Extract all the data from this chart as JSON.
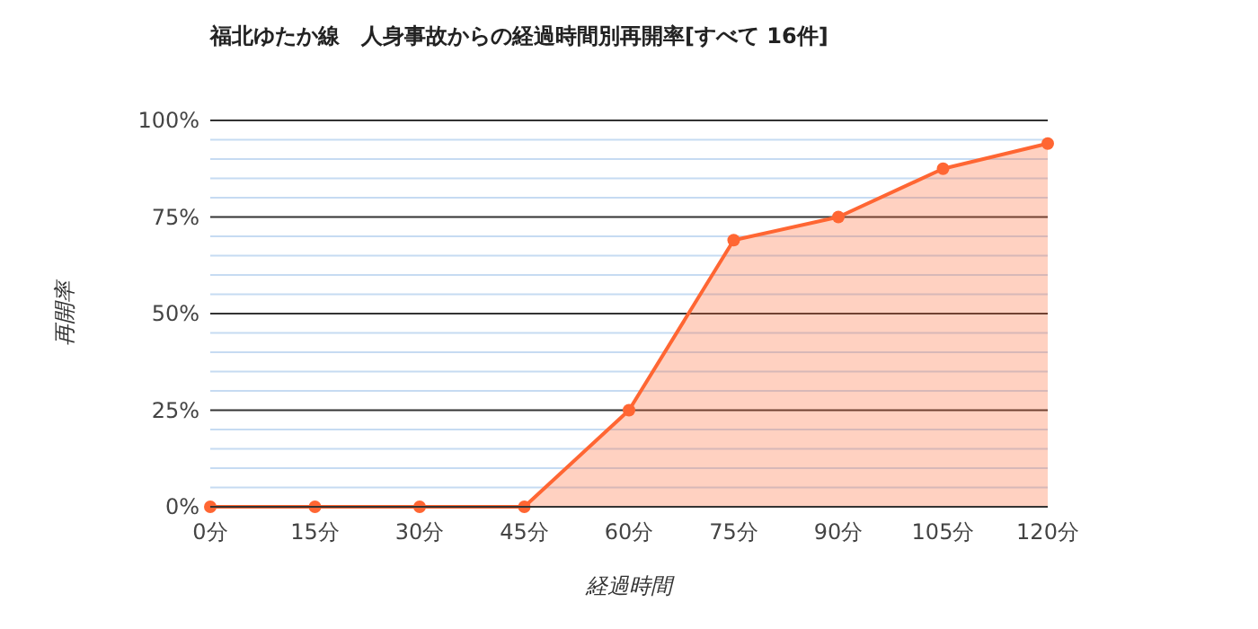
{
  "chart_data": {
    "type": "area",
    "title": "福北ゆたか線　人身事故からの経過時間別再開率[すべて 16件]",
    "xlabel": "経過時間",
    "ylabel": "再開率",
    "x": [
      0,
      15,
      30,
      45,
      60,
      75,
      90,
      105,
      120
    ],
    "series": [
      {
        "color": "#ff6633",
        "values": [
          0,
          0,
          0,
          0,
          25,
          69,
          75,
          87.5,
          94
        ]
      }
    ],
    "xlim": [
      0,
      120
    ],
    "xticks": [
      {
        "value": 0,
        "label": "0分"
      },
      {
        "value": 15,
        "label": "15分"
      },
      {
        "value": 30,
        "label": "30分"
      },
      {
        "value": 45,
        "label": "45分"
      },
      {
        "value": 60,
        "label": "60分"
      },
      {
        "value": 75,
        "label": "75分"
      },
      {
        "value": 90,
        "label": "90分"
      },
      {
        "value": 105,
        "label": "105分"
      },
      {
        "value": 120,
        "label": "120分"
      }
    ],
    "ylim": [
      0,
      100
    ],
    "yticks": [
      {
        "value": 0,
        "label": "0%"
      },
      {
        "value": 5,
        "label": null
      },
      {
        "value": 10,
        "label": null
      },
      {
        "value": 15,
        "label": null
      },
      {
        "value": 20,
        "label": null
      },
      {
        "value": 25,
        "label": "25%"
      },
      {
        "value": 30,
        "label": null
      },
      {
        "value": 35,
        "label": null
      },
      {
        "value": 40,
        "label": null
      },
      {
        "value": 45,
        "label": null
      },
      {
        "value": 50,
        "label": "50%"
      },
      {
        "value": 55,
        "label": null
      },
      {
        "value": 60,
        "label": null
      },
      {
        "value": 65,
        "label": null
      },
      {
        "value": 70,
        "label": null
      },
      {
        "value": 75,
        "label": "75%"
      },
      {
        "value": 80,
        "label": null
      },
      {
        "value": 85,
        "label": null
      },
      {
        "value": 90,
        "label": null
      },
      {
        "value": 95,
        "label": null
      },
      {
        "value": 100,
        "label": "100%"
      }
    ],
    "grid": "y",
    "marker": "circle",
    "line_style": "solid"
  }
}
